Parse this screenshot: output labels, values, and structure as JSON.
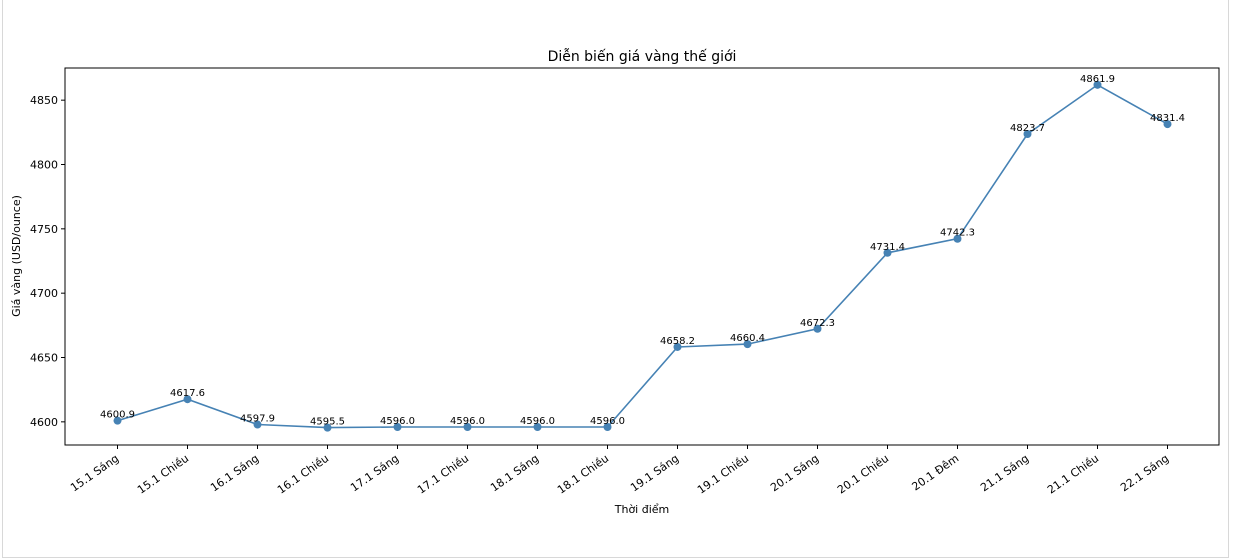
{
  "chart_data": {
    "type": "line",
    "title": "Diễn biến giá vàng thế giới",
    "xlabel": "Thời điểm",
    "ylabel": "Giá vàng (USD/ounce)",
    "categories": [
      "15.1 Sáng",
      "15.1 Chiều",
      "16.1 Sáng",
      "16.1 Chiều",
      "17.1 Sáng",
      "17.1 Chiều",
      "18.1 Sáng",
      "18.1 Chiều",
      "19.1 Sáng",
      "19.1 Chiều",
      "20.1 Sáng",
      "20.1 Chiều",
      "20.1 Đêm",
      "21.1 Sáng",
      "21.1 Chiều",
      "22.1 Sáng"
    ],
    "values": [
      4600.9,
      4617.6,
      4597.9,
      4595.5,
      4596.0,
      4596.0,
      4596.0,
      4596.0,
      4658.2,
      4660.4,
      4672.3,
      4731.4,
      4742.3,
      4823.7,
      4861.9,
      4831.4
    ],
    "data_labels": [
      "4600.9",
      "4617.6",
      "4597.9",
      "4595.5",
      "4596.0",
      "4596.0",
      "4596.0",
      "4596.0",
      "4658.2",
      "4660.4",
      "4672.3",
      "4731.4",
      "4742.3",
      "4823.7",
      "4861.9",
      "4831.4"
    ],
    "yticks": [
      4600,
      4650,
      4700,
      4750,
      4800,
      4850
    ],
    "ylim": [
      4582,
      4875
    ],
    "grid": false,
    "line_color": "#4682b4"
  }
}
